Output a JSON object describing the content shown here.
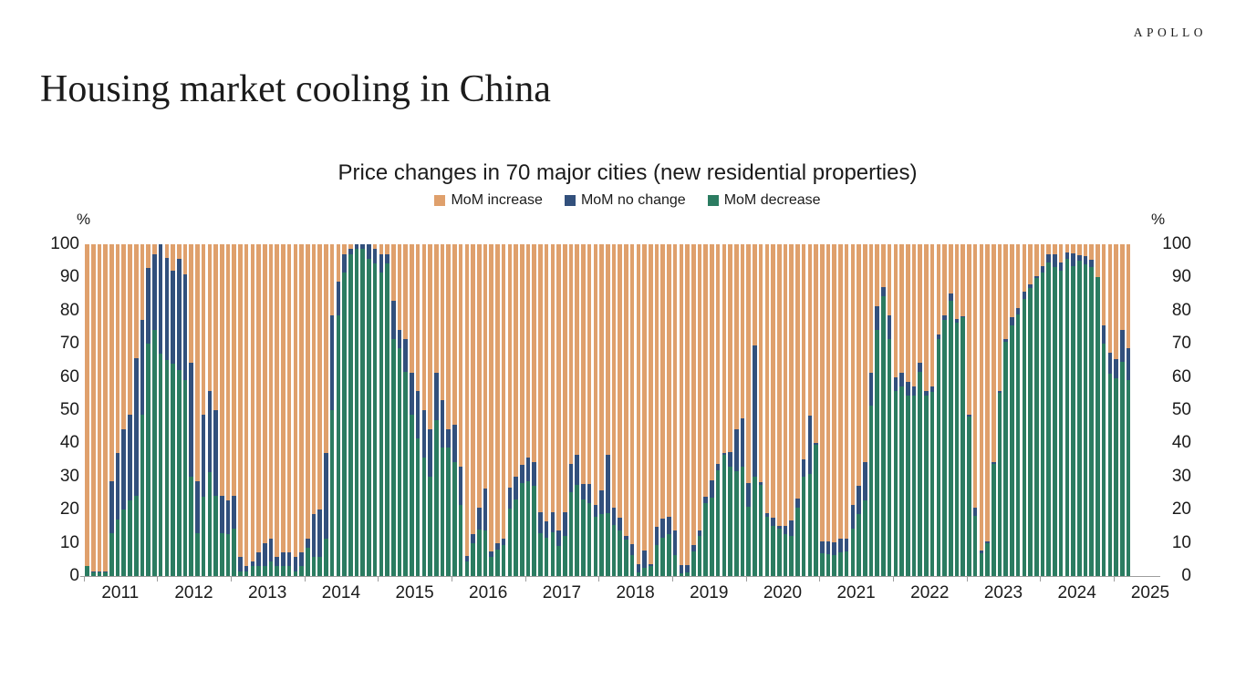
{
  "brand": {
    "logo_text": "APOLLO"
  },
  "page_title": "Housing market cooling in China",
  "chart": {
    "title": "Price changes in 70 major cities (new residential properties)",
    "legend": [
      {
        "label": "MoM increase",
        "color": "#DFA06C"
      },
      {
        "label": "MoM no change",
        "color": "#32507C"
      },
      {
        "label": "MoM decrease",
        "color": "#2B7C61"
      }
    ],
    "axis": {
      "unit_label": "%",
      "y_ticks": [
        0,
        10,
        20,
        30,
        40,
        50,
        60,
        70,
        80,
        90,
        100
      ],
      "x_tick_labels": [
        "2011",
        "2012",
        "2013",
        "2014",
        "2015",
        "2016",
        "2017",
        "2018",
        "2019",
        "2020",
        "2021",
        "2022",
        "2023",
        "2024",
        "2025"
      ]
    }
  },
  "chart_data": {
    "type": "bar",
    "subtype": "stacked-100pct-monthly",
    "title": "Price changes in 70 major cities (new residential properties)",
    "xlabel": "",
    "ylabel": "%",
    "ylim": [
      0,
      100
    ],
    "x_start_month": "2011-01",
    "x_end_month": "2025-03",
    "legend_position": "top",
    "grid": false,
    "series": [
      {
        "name": "MoM decrease",
        "color": "#2B7C61",
        "values": [
          2.9,
          1,
          1,
          1,
          12.9,
          17.1,
          20,
          22.9,
          24.3,
          48.6,
          70,
          74.3,
          67,
          65,
          64,
          62,
          59,
          30,
          12.9,
          24,
          31.4,
          24.3,
          13,
          12.5,
          14.3,
          1.4,
          1.4,
          2.9,
          2.9,
          2.9,
          4.3,
          2.9,
          2.9,
          2.9,
          1.4,
          2.9,
          8.6,
          5.7,
          5.7,
          11.4,
          50,
          78.6,
          91.4,
          97.1,
          98.6,
          98.6,
          95.7,
          94.3,
          91.4,
          94.3,
          71.4,
          68.6,
          61.4,
          48.6,
          41.4,
          35.7,
          30,
          47.1,
          38.6,
          38.6,
          34.3,
          21.4,
          4.3,
          10,
          14,
          13.6,
          5.7,
          8,
          9.4,
          20.3,
          23,
          28,
          28.6,
          27.1,
          12.9,
          11.4,
          13.1,
          9,
          12.2,
          25.4,
          27.5,
          23,
          22,
          17.8,
          18.6,
          19,
          15.4,
          13.8,
          11,
          6.2,
          1,
          2.5,
          3,
          9.4,
          11.6,
          12.7,
          6.2,
          0.8,
          1,
          7.5,
          12,
          22,
          23.5,
          32,
          36.5,
          33,
          31.6,
          33,
          21,
          30,
          27.5,
          17.8,
          15,
          14.2,
          12.5,
          12.2,
          20.5,
          30,
          30.7,
          39.5,
          6.8,
          6.5,
          6.2,
          7.1,
          7.4,
          14.3,
          18.6,
          22.9,
          51.4,
          74.3,
          84.3,
          71.4,
          55.7,
          57.1,
          54.3,
          54.3,
          61.4,
          54.3,
          55.5,
          71.4,
          77.1,
          83,
          76.4,
          77.9,
          48,
          18.2,
          6.8,
          9.9,
          33.7,
          55.2,
          70.5,
          75.6,
          78.8,
          83.6,
          86.7,
          89.7,
          91.5,
          94.5,
          93,
          92,
          95.5,
          93.5,
          95,
          94,
          93,
          90,
          70,
          61,
          59.5,
          64.5,
          59
        ]
      },
      {
        "name": "MoM no change",
        "color": "#32507C",
        "values": [
          0,
          0.4,
          0.4,
          0.5,
          15.7,
          20,
          24.3,
          25.7,
          41.4,
          28.5,
          22.9,
          22.8,
          33,
          31,
          28,
          33.5,
          32,
          34.3,
          15.7,
          24.6,
          24.3,
          25.7,
          11.3,
          10.4,
          10,
          4.3,
          1.5,
          1.4,
          4.2,
          7.1,
          7.1,
          2.8,
          4.2,
          4.2,
          4.3,
          4.2,
          2.8,
          12.9,
          14.3,
          25.7,
          28.6,
          10,
          5.7,
          1.5,
          1.4,
          1.4,
          4.3,
          4.3,
          5.7,
          2.8,
          11.5,
          5.7,
          10,
          12.8,
          14.3,
          14.3,
          14.3,
          14.3,
          14.3,
          5.7,
          11.4,
          11.5,
          1.7,
          2.7,
          6.5,
          12.7,
          1.6,
          2,
          1.9,
          6.3,
          7,
          5.5,
          7.1,
          7.2,
          6.2,
          5,
          6,
          4.8,
          6.9,
          8.4,
          9.1,
          4.8,
          5.8,
          3.7,
          7.1,
          17.5,
          5.1,
          3.8,
          1,
          3.3,
          2.5,
          5.1,
          0.6,
          5.3,
          5.7,
          5.1,
          7.4,
          2.6,
          2.2,
          1.9,
          1.8,
          1.8,
          5.4,
          1.8,
          0.7,
          4.5,
          12.5,
          14.5,
          7,
          39.6,
          0.7,
          1.2,
          2.5,
          1,
          2.5,
          4.6,
          2.8,
          5.2,
          17.6,
          0.7,
          3.7,
          3.9,
          4,
          4.3,
          4,
          7.1,
          8.5,
          11.4,
          10,
          7.1,
          2.8,
          7.2,
          4.3,
          4.3,
          4.3,
          2.8,
          2.9,
          1.4,
          1.6,
          1.5,
          1.5,
          2.3,
          1,
          0.5,
          0.5,
          2.5,
          1,
          0.6,
          0.6,
          0.5,
          0.9,
          2.3,
          2,
          2.1,
          1.2,
          0.7,
          1.9,
          2.4,
          3.9,
          2.6,
          1.9,
          3.8,
          1.7,
          2.4,
          2.4,
          0,
          5.5,
          6.3,
          6,
          9.7,
          9.6
        ]
      },
      {
        "name": "MoM increase",
        "color": "#DFA06C",
        "values": [
          97.1,
          98.6,
          98.6,
          98.5,
          71.4,
          62.9,
          55.7,
          51.4,
          34.3,
          22.9,
          7.1,
          2.9,
          0,
          4,
          8,
          4.5,
          9,
          35.7,
          71.4,
          51.4,
          44.3,
          50,
          75.7,
          77.1,
          75.7,
          94.3,
          97.1,
          95.7,
          92.9,
          90,
          88.6,
          94.3,
          92.9,
          92.9,
          94.3,
          92.9,
          88.6,
          81.4,
          80,
          62.9,
          21.4,
          11.4,
          2.9,
          1.4,
          0,
          0,
          0,
          1.4,
          2.9,
          2.9,
          17.1,
          25.7,
          28.6,
          38.6,
          44.3,
          50,
          55.7,
          38.6,
          47.1,
          55.7,
          54.3,
          67.1,
          94,
          87.3,
          79.5,
          73.7,
          92.7,
          90,
          88.7,
          73.4,
          70,
          66.5,
          64.3,
          65.7,
          80.9,
          83.6,
          80.9,
          86.2,
          80.9,
          66.2,
          63.4,
          72.2,
          72.2,
          78.5,
          74.3,
          63.5,
          79.5,
          82.4,
          88,
          90.5,
          96.5,
          92.4,
          96.4,
          85.3,
          82.7,
          82.2,
          86.4,
          96.6,
          96.8,
          90.6,
          86.2,
          76.2,
          71.1,
          66.2,
          62.8,
          62.5,
          55.9,
          52.5,
          72,
          30.4,
          71.8,
          81,
          82.5,
          84.8,
          85,
          83.2,
          76.7,
          64.8,
          51.7,
          59.8,
          89.5,
          89.6,
          89.8,
          88.6,
          88.6,
          78.6,
          72.9,
          65.7,
          38.6,
          18.6,
          12.9,
          21.4,
          40,
          38.6,
          41.4,
          42.9,
          35.7,
          44.3,
          42.9,
          27.1,
          21.4,
          14.7,
          22.6,
          21.6,
          51.5,
          79.3,
          92.2,
          89.5,
          65.7,
          44.3,
          28.6,
          22.1,
          19.2,
          14.3,
          12.1,
          9.6,
          6.6,
          3.1,
          3.1,
          5.4,
          2.6,
          2.7,
          3.3,
          3.6,
          4.6,
          10,
          24.5,
          32.7,
          34.5,
          25.8,
          31.4
        ]
      }
    ]
  }
}
